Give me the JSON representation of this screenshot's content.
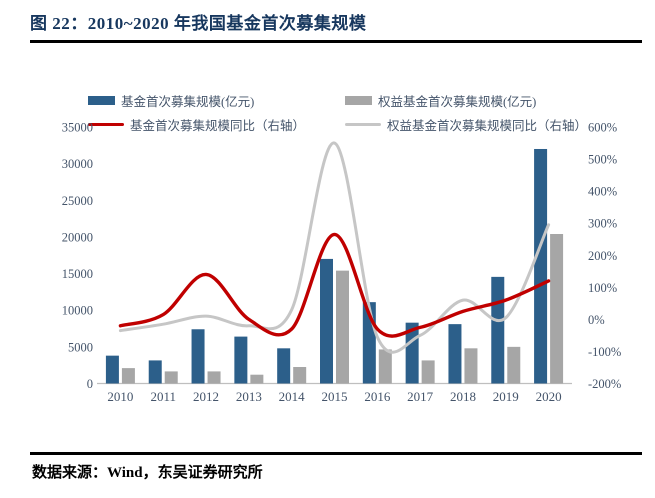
{
  "figure": {
    "title": "图 22：2010~2020 年我国基金首次募集规模",
    "source": "数据来源：Wind，东吴证券研究所"
  },
  "colors": {
    "title_text": "#17375e",
    "axis_text": "#44546a",
    "bar_fund": "#2c5f8a",
    "bar_equity": "#a6a6a6",
    "line_fund_yoy": "#c00000",
    "line_equity_yoy": "#c6c6c6",
    "divider": "#000000",
    "baseline": "#bfbfbf"
  },
  "chart_data": {
    "type": "bar",
    "subtype": "combo-bar-line-dual-axis",
    "categories": [
      "2010",
      "2011",
      "2012",
      "2013",
      "2014",
      "2015",
      "2016",
      "2017",
      "2018",
      "2019",
      "2020"
    ],
    "series": [
      {
        "name": "基金首次募集规模(亿元)",
        "type": "bar",
        "axis": "left",
        "color": "#2c5f8a",
        "values": [
          3800,
          3150,
          7400,
          6400,
          4800,
          17000,
          11100,
          8300,
          8100,
          14550,
          32000
        ]
      },
      {
        "name": "权益基金首次募集规模(亿元)",
        "type": "bar",
        "axis": "left",
        "color": "#a6a6a6",
        "values": [
          2100,
          1650,
          1650,
          1200,
          2250,
          15400,
          4650,
          3150,
          4800,
          5000,
          20400
        ]
      },
      {
        "name": "基金首次募集规模同比（右轴）",
        "type": "line",
        "axis": "right",
        "color": "#c00000",
        "unit": "%",
        "values": [
          -20,
          15,
          140,
          0,
          -30,
          265,
          -30,
          -25,
          25,
          60,
          120
        ]
      },
      {
        "name": "权益基金首次募集规模同比（右轴）",
        "type": "line",
        "axis": "right",
        "color": "#c6c6c6",
        "unit": "%",
        "values": [
          -35,
          -15,
          10,
          -20,
          30,
          550,
          -55,
          -50,
          60,
          5,
          295
        ]
      }
    ],
    "left_axis": {
      "min": 0,
      "max": 35000,
      "step": 5000,
      "tick_labels": [
        "35000",
        "30000",
        "25000",
        "20000",
        "15000",
        "10000",
        "5000",
        "0"
      ]
    },
    "right_axis": {
      "min": -200,
      "max": 600,
      "step": 100,
      "tick_labels": [
        "600%",
        "500%",
        "400%",
        "300%",
        "200%",
        "100%",
        "0%",
        "-100%",
        "-200%"
      ]
    },
    "legend_position": "top",
    "grid": false
  }
}
